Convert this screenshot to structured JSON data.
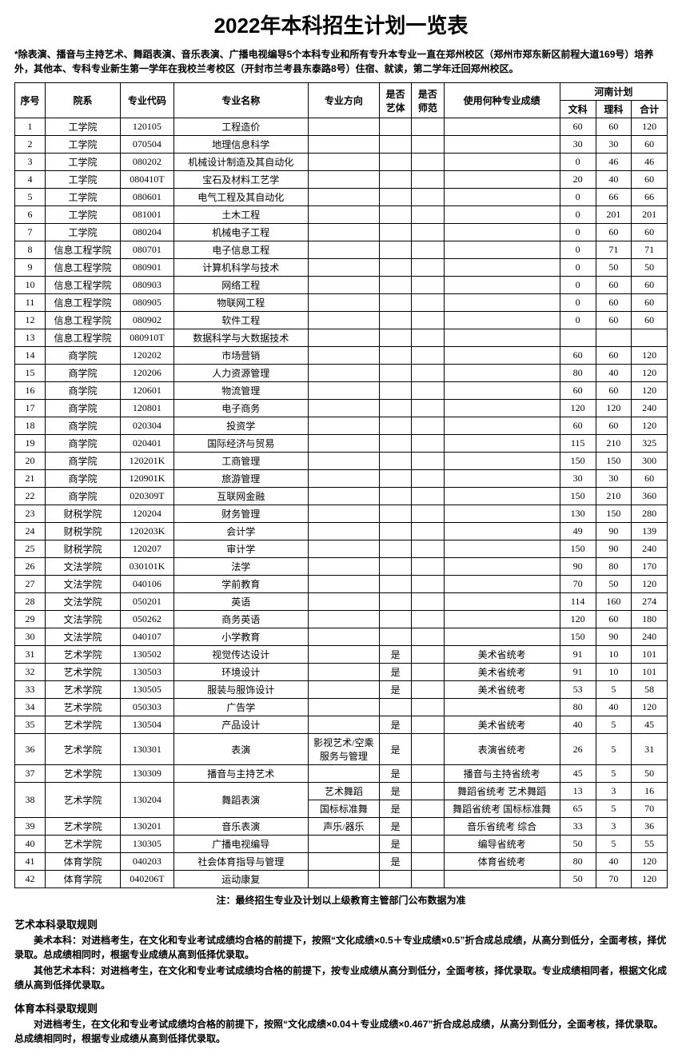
{
  "title": "2022年本科招生计划一览表",
  "top_note": "*除表演、播音与主持艺术、舞蹈表演、音乐表演、广播电视编导5个本科专业和所有专升本专业一直在郑州校区（郑州市郑东新区前程大道169号）培养外，其他本、专科专业新生第一学年在我校兰考校区（开封市兰考县东泰路8号）住宿、就读，第二学年迁回郑州校区。",
  "headers": {
    "seq": "序号",
    "dept": "院系",
    "code": "专业代码",
    "major": "专业名称",
    "direction": "专业方向",
    "is_art": "是否艺体",
    "is_normal": "是否师范",
    "score_type": "使用何种专业成绩",
    "henan_plan": "河南计划",
    "wenke": "文科",
    "like": "理科",
    "total": "合计"
  },
  "rows": [
    {
      "seq": "1",
      "dept": "工学院",
      "code": "120105",
      "major": "工程造价",
      "dir": "",
      "art": "",
      "norm": "",
      "score": "",
      "wen": "60",
      "li": "60",
      "sum": "120"
    },
    {
      "seq": "2",
      "dept": "工学院",
      "code": "070504",
      "major": "地理信息科学",
      "dir": "",
      "art": "",
      "norm": "",
      "score": "",
      "wen": "30",
      "li": "30",
      "sum": "60"
    },
    {
      "seq": "3",
      "dept": "工学院",
      "code": "080202",
      "major": "机械设计制造及其自动化",
      "dir": "",
      "art": "",
      "norm": "",
      "score": "",
      "wen": "0",
      "li": "46",
      "sum": "46"
    },
    {
      "seq": "4",
      "dept": "工学院",
      "code": "080410T",
      "major": "宝石及材料工艺学",
      "dir": "",
      "art": "",
      "norm": "",
      "score": "",
      "wen": "20",
      "li": "40",
      "sum": "60"
    },
    {
      "seq": "5",
      "dept": "工学院",
      "code": "080601",
      "major": "电气工程及其自动化",
      "dir": "",
      "art": "",
      "norm": "",
      "score": "",
      "wen": "0",
      "li": "66",
      "sum": "66"
    },
    {
      "seq": "6",
      "dept": "工学院",
      "code": "081001",
      "major": "土木工程",
      "dir": "",
      "art": "",
      "norm": "",
      "score": "",
      "wen": "0",
      "li": "201",
      "sum": "201"
    },
    {
      "seq": "7",
      "dept": "工学院",
      "code": "080204",
      "major": "机械电子工程",
      "dir": "",
      "art": "",
      "norm": "",
      "score": "",
      "wen": "0",
      "li": "60",
      "sum": "60"
    },
    {
      "seq": "8",
      "dept": "信息工程学院",
      "code": "080701",
      "major": "电子信息工程",
      "dir": "",
      "art": "",
      "norm": "",
      "score": "",
      "wen": "0",
      "li": "71",
      "sum": "71"
    },
    {
      "seq": "9",
      "dept": "信息工程学院",
      "code": "080901",
      "major": "计算机科学与技术",
      "dir": "",
      "art": "",
      "norm": "",
      "score": "",
      "wen": "0",
      "li": "50",
      "sum": "50"
    },
    {
      "seq": "10",
      "dept": "信息工程学院",
      "code": "080903",
      "major": "网络工程",
      "dir": "",
      "art": "",
      "norm": "",
      "score": "",
      "wen": "0",
      "li": "60",
      "sum": "60"
    },
    {
      "seq": "11",
      "dept": "信息工程学院",
      "code": "080905",
      "major": "物联网工程",
      "dir": "",
      "art": "",
      "norm": "",
      "score": "",
      "wen": "0",
      "li": "60",
      "sum": "60"
    },
    {
      "seq": "12",
      "dept": "信息工程学院",
      "code": "080902",
      "major": "软件工程",
      "dir": "",
      "art": "",
      "norm": "",
      "score": "",
      "wen": "0",
      "li": "60",
      "sum": "60"
    },
    {
      "seq": "13",
      "dept": "信息工程学院",
      "code": "080910T",
      "major": "数据科学与大数据技术",
      "dir": "",
      "art": "",
      "norm": "",
      "score": "",
      "wen": "",
      "li": "",
      "sum": ""
    },
    {
      "seq": "14",
      "dept": "商学院",
      "code": "120202",
      "major": "市场营销",
      "dir": "",
      "art": "",
      "norm": "",
      "score": "",
      "wen": "60",
      "li": "60",
      "sum": "120"
    },
    {
      "seq": "15",
      "dept": "商学院",
      "code": "120206",
      "major": "人力资源管理",
      "dir": "",
      "art": "",
      "norm": "",
      "score": "",
      "wen": "80",
      "li": "40",
      "sum": "120"
    },
    {
      "seq": "16",
      "dept": "商学院",
      "code": "120601",
      "major": "物流管理",
      "dir": "",
      "art": "",
      "norm": "",
      "score": "",
      "wen": "60",
      "li": "60",
      "sum": "120"
    },
    {
      "seq": "17",
      "dept": "商学院",
      "code": "120801",
      "major": "电子商务",
      "dir": "",
      "art": "",
      "norm": "",
      "score": "",
      "wen": "120",
      "li": "120",
      "sum": "240"
    },
    {
      "seq": "18",
      "dept": "商学院",
      "code": "020304",
      "major": "投资学",
      "dir": "",
      "art": "",
      "norm": "",
      "score": "",
      "wen": "60",
      "li": "60",
      "sum": "120"
    },
    {
      "seq": "19",
      "dept": "商学院",
      "code": "020401",
      "major": "国际经济与贸易",
      "dir": "",
      "art": "",
      "norm": "",
      "score": "",
      "wen": "115",
      "li": "210",
      "sum": "325"
    },
    {
      "seq": "20",
      "dept": "商学院",
      "code": "120201K",
      "major": "工商管理",
      "dir": "",
      "art": "",
      "norm": "",
      "score": "",
      "wen": "150",
      "li": "150",
      "sum": "300"
    },
    {
      "seq": "21",
      "dept": "商学院",
      "code": "120901K",
      "major": "旅游管理",
      "dir": "",
      "art": "",
      "norm": "",
      "score": "",
      "wen": "30",
      "li": "30",
      "sum": "60"
    },
    {
      "seq": "22",
      "dept": "商学院",
      "code": "020309T",
      "major": "互联网金融",
      "dir": "",
      "art": "",
      "norm": "",
      "score": "",
      "wen": "150",
      "li": "210",
      "sum": "360"
    },
    {
      "seq": "23",
      "dept": "财税学院",
      "code": "120204",
      "major": "财务管理",
      "dir": "",
      "art": "",
      "norm": "",
      "score": "",
      "wen": "130",
      "li": "150",
      "sum": "280"
    },
    {
      "seq": "24",
      "dept": "财税学院",
      "code": "120203K",
      "major": "会计学",
      "dir": "",
      "art": "",
      "norm": "",
      "score": "",
      "wen": "49",
      "li": "90",
      "sum": "139"
    },
    {
      "seq": "25",
      "dept": "财税学院",
      "code": "120207",
      "major": "审计学",
      "dir": "",
      "art": "",
      "norm": "",
      "score": "",
      "wen": "150",
      "li": "90",
      "sum": "240"
    },
    {
      "seq": "26",
      "dept": "文法学院",
      "code": "030101K",
      "major": "法学",
      "dir": "",
      "art": "",
      "norm": "",
      "score": "",
      "wen": "90",
      "li": "80",
      "sum": "170"
    },
    {
      "seq": "27",
      "dept": "文法学院",
      "code": "040106",
      "major": "学前教育",
      "dir": "",
      "art": "",
      "norm": "",
      "score": "",
      "wen": "70",
      "li": "50",
      "sum": "120"
    },
    {
      "seq": "28",
      "dept": "文法学院",
      "code": "050201",
      "major": "英语",
      "dir": "",
      "art": "",
      "norm": "",
      "score": "",
      "wen": "114",
      "li": "160",
      "sum": "274"
    },
    {
      "seq": "29",
      "dept": "文法学院",
      "code": "050262",
      "major": "商务英语",
      "dir": "",
      "art": "",
      "norm": "",
      "score": "",
      "wen": "120",
      "li": "60",
      "sum": "180"
    },
    {
      "seq": "30",
      "dept": "文法学院",
      "code": "040107",
      "major": "小学教育",
      "dir": "",
      "art": "",
      "norm": "",
      "score": "",
      "wen": "150",
      "li": "90",
      "sum": "240"
    },
    {
      "seq": "31",
      "dept": "艺术学院",
      "code": "130502",
      "major": "视觉传达设计",
      "dir": "",
      "art": "是",
      "norm": "",
      "score": "美术省统考",
      "wen": "91",
      "li": "10",
      "sum": "101"
    },
    {
      "seq": "32",
      "dept": "艺术学院",
      "code": "130503",
      "major": "环境设计",
      "dir": "",
      "art": "是",
      "norm": "",
      "score": "美术省统考",
      "wen": "91",
      "li": "10",
      "sum": "101"
    },
    {
      "seq": "33",
      "dept": "艺术学院",
      "code": "130505",
      "major": "服装与服饰设计",
      "dir": "",
      "art": "是",
      "norm": "",
      "score": "美术省统考",
      "wen": "53",
      "li": "5",
      "sum": "58"
    },
    {
      "seq": "34",
      "dept": "艺术学院",
      "code": "050303",
      "major": "广告学",
      "dir": "",
      "art": "",
      "norm": "",
      "score": "",
      "wen": "80",
      "li": "40",
      "sum": "120"
    },
    {
      "seq": "35",
      "dept": "艺术学院",
      "code": "130504",
      "major": "产品设计",
      "dir": "",
      "art": "是",
      "norm": "",
      "score": "美术省统考",
      "wen": "40",
      "li": "5",
      "sum": "45"
    },
    {
      "seq": "36",
      "dept": "艺术学院",
      "code": "130301",
      "major": "表演",
      "dir": "影视艺术/空乘服务与管理",
      "art": "是",
      "norm": "",
      "score": "表演省统考",
      "wen": "26",
      "li": "5",
      "sum": "31"
    },
    {
      "seq": "37",
      "dept": "艺术学院",
      "code": "130309",
      "major": "播音与主持艺术",
      "dir": "",
      "art": "是",
      "norm": "",
      "score": "播音与主持省统考",
      "wen": "45",
      "li": "5",
      "sum": "50"
    },
    {
      "seq": "39",
      "dept": "艺术学院",
      "code": "130201",
      "major": "音乐表演",
      "dir": "声乐/器乐",
      "art": "是",
      "norm": "",
      "score": "音乐省统考 综合",
      "wen": "33",
      "li": "3",
      "sum": "36"
    },
    {
      "seq": "40",
      "dept": "艺术学院",
      "code": "130305",
      "major": "广播电视编导",
      "dir": "",
      "art": "是",
      "norm": "",
      "score": "编导省统考",
      "wen": "50",
      "li": "5",
      "sum": "55"
    },
    {
      "seq": "41",
      "dept": "体育学院",
      "code": "040203",
      "major": "社会体育指导与管理",
      "dir": "",
      "art": "是",
      "norm": "",
      "score": "体育省统考",
      "wen": "80",
      "li": "40",
      "sum": "120"
    },
    {
      "seq": "42",
      "dept": "体育学院",
      "code": "040206T",
      "major": "运动康复",
      "dir": "",
      "art": "",
      "norm": "",
      "score": "",
      "wen": "50",
      "li": "70",
      "sum": "120"
    }
  ],
  "row38": {
    "seq": "38",
    "dept": "艺术学院",
    "code": "130204",
    "major": "舞蹈表演",
    "dir1": "艺术舞蹈",
    "art1": "是",
    "score1": "舞蹈省统考 艺术舞蹈",
    "wen1": "13",
    "li1": "3",
    "sum1": "16",
    "dir2": "国标标准舞",
    "art2": "是",
    "score2": "舞蹈省统考 国标标准舞",
    "wen2": "65",
    "li2": "5",
    "sum2": "70"
  },
  "foot_note": "注：最终招生专业及计划以上级教育主管部门公布数据为准",
  "art_rule_title": "艺术本科录取规则",
  "art_rule_p1": "美术本科：对进档考生，在文化和专业考试成绩均合格的前提下，按照“文化成绩×0.5＋专业成绩×0.5”折合成总成绩，从高分到低分，全面考核，择优录取。总成绩相同时，根据专业成绩从高到低择优录取。",
  "art_rule_p2": "其他艺术本科：对进档考生，在文化和专业考试成绩均合格的前提下，按专业成绩从高分到低分，全面考核，择优录取。专业成绩相同者，根据文化成绩从高到低择优录取。",
  "pe_rule_title": "体育本科录取规则",
  "pe_rule_p1": "对进档考生，在文化和专业考试成绩均合格的前提下，按照“文化成绩×0.04＋专业成绩×0.467”折合成总成绩，从高分到低分，全面考核，择优录取。总成绩相同时，根据专业成绩从高到低择优录取。"
}
